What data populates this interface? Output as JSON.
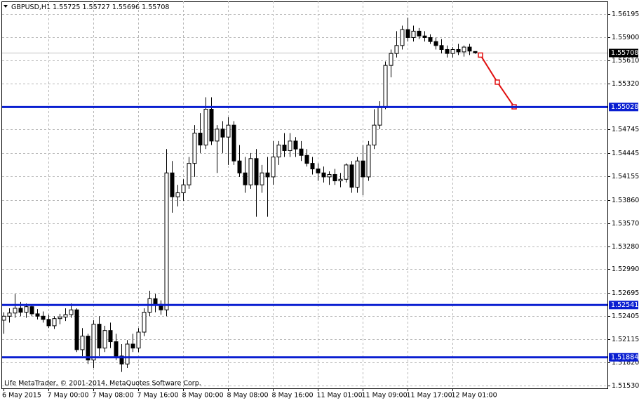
{
  "chart_data": {
    "type": "candlestick",
    "title": "GBPUSD,H1",
    "watermark": "Life MetaTrader, © 2001-2014, MetaQuotes Software Corp.",
    "categories": [
      "6 May 2015",
      null,
      null,
      null,
      null,
      null,
      null,
      null,
      "7 May 00:00",
      null,
      null,
      null,
      null,
      null,
      null,
      null,
      "7 May 08:00",
      null,
      null,
      null,
      null,
      null,
      null,
      null,
      "7 May 16:00",
      null,
      null,
      null,
      null,
      null,
      null,
      null,
      "8 May 00:00",
      null,
      null,
      null,
      null,
      null,
      null,
      null,
      "8 May 08:00",
      null,
      null,
      null,
      null,
      null,
      null,
      null,
      "8 May 16:00",
      null,
      null,
      null,
      null,
      null,
      null,
      null,
      "11 May 01:00",
      null,
      null,
      null,
      null,
      null,
      null,
      null,
      "11 May 09:00",
      null,
      null,
      null,
      null,
      null,
      null,
      null,
      "11 May 17:00",
      null,
      null,
      null,
      null,
      null,
      null,
      null,
      "12 May 01:00",
      null,
      null,
      null,
      null
    ],
    "open": [
      1.5235,
      1.524,
      1.5244,
      1.525,
      1.5245,
      1.5252,
      1.5243,
      1.524,
      1.5236,
      1.5228,
      1.5237,
      1.5239,
      1.5242,
      1.5248,
      1.5198,
      1.5215,
      1.5185,
      1.523,
      1.52,
      1.5222,
      1.5208,
      1.519,
      1.518,
      1.5205,
      1.52,
      1.522,
      1.5245,
      1.5262,
      1.5255,
      1.5248,
      1.542,
      1.539,
      1.5395,
      1.5405,
      1.5432,
      1.547,
      1.5455,
      1.55,
      1.546,
      1.5475,
      1.5465,
      1.548,
      1.5435,
      1.542,
      1.5405,
      1.5438,
      1.5405,
      1.542,
      1.5415,
      1.544,
      1.5455,
      1.5448,
      1.546,
      1.545,
      1.5442,
      1.5432,
      1.5425,
      1.542,
      1.5415,
      1.5418,
      1.541,
      1.5412,
      1.543,
      1.5402,
      1.5435,
      1.5415,
      1.5455,
      1.548,
      1.5502,
      1.5555,
      1.557,
      1.558,
      1.56,
      1.559,
      1.5598,
      1.5592,
      1.559,
      1.5585,
      1.558,
      1.5575,
      1.557,
      1.5575,
      1.5572,
      1.5578,
      1.55725
    ],
    "high": [
      1.5245,
      1.525,
      1.5268,
      1.5258,
      1.5256,
      1.5254,
      1.5249,
      1.5246,
      1.5242,
      1.524,
      1.5243,
      1.525,
      1.5256,
      1.525,
      1.5225,
      1.5218,
      1.5235,
      1.524,
      1.5228,
      1.5232,
      1.5218,
      1.5205,
      1.521,
      1.5218,
      1.5225,
      1.525,
      1.5272,
      1.5268,
      1.526,
      1.545,
      1.5435,
      1.5405,
      1.5412,
      1.544,
      1.548,
      1.5495,
      1.5515,
      1.5515,
      1.548,
      1.5485,
      1.549,
      1.5485,
      1.5455,
      1.544,
      1.5445,
      1.545,
      1.543,
      1.544,
      1.546,
      1.546,
      1.547,
      1.547,
      1.5465,
      1.546,
      1.545,
      1.544,
      1.5432,
      1.5428,
      1.5422,
      1.5425,
      1.542,
      1.5432,
      1.5435,
      1.544,
      1.5455,
      1.546,
      1.55,
      1.551,
      1.556,
      1.5575,
      1.5598,
      1.5605,
      1.5615,
      1.5605,
      1.5602,
      1.5598,
      1.5594,
      1.559,
      1.5588,
      1.558,
      1.5578,
      1.5582,
      1.558,
      1.5582,
      1.55727
    ],
    "low": [
      1.5218,
      1.5232,
      1.5238,
      1.524,
      1.5238,
      1.524,
      1.5236,
      1.5232,
      1.5225,
      1.5224,
      1.523,
      1.5234,
      1.5238,
      1.5195,
      1.519,
      1.518,
      1.5175,
      1.519,
      1.5195,
      1.52,
      1.5185,
      1.517,
      1.5175,
      1.5195,
      1.5195,
      1.5215,
      1.524,
      1.5245,
      1.5242,
      1.524,
      1.537,
      1.5378,
      1.5385,
      1.54,
      1.5415,
      1.5445,
      1.545,
      1.5455,
      1.542,
      1.5445,
      1.543,
      1.543,
      1.5415,
      1.5395,
      1.54,
      1.5365,
      1.5395,
      1.5365,
      1.5405,
      1.543,
      1.544,
      1.544,
      1.544,
      1.5435,
      1.5428,
      1.5418,
      1.541,
      1.5408,
      1.5405,
      1.5405,
      1.5402,
      1.5408,
      1.5395,
      1.5395,
      1.5392,
      1.541,
      1.545,
      1.5475,
      1.55,
      1.554,
      1.5565,
      1.5575,
      1.5585,
      1.5585,
      1.5588,
      1.5585,
      1.5582,
      1.5575,
      1.557,
      1.5565,
      1.5565,
      1.5568,
      1.5566,
      1.5568,
      1.55696
    ],
    "close": [
      1.524,
      1.5244,
      1.525,
      1.5245,
      1.5252,
      1.5243,
      1.524,
      1.5236,
      1.5228,
      1.5237,
      1.5239,
      1.5242,
      1.5248,
      1.5198,
      1.5215,
      1.5185,
      1.523,
      1.52,
      1.5222,
      1.5208,
      1.519,
      1.518,
      1.5205,
      1.52,
      1.522,
      1.5245,
      1.5262,
      1.5255,
      1.5248,
      1.542,
      1.539,
      1.5395,
      1.5405,
      1.5432,
      1.547,
      1.5455,
      1.55,
      1.546,
      1.5475,
      1.5465,
      1.548,
      1.5435,
      1.542,
      1.5405,
      1.5438,
      1.5405,
      1.542,
      1.5415,
      1.544,
      1.5455,
      1.5448,
      1.546,
      1.545,
      1.5442,
      1.5432,
      1.5425,
      1.542,
      1.5415,
      1.5418,
      1.541,
      1.5412,
      1.543,
      1.5402,
      1.5435,
      1.5415,
      1.5455,
      1.548,
      1.5502,
      1.5555,
      1.557,
      1.558,
      1.56,
      1.559,
      1.5598,
      1.5592,
      1.559,
      1.5585,
      1.558,
      1.5575,
      1.557,
      1.5575,
      1.5572,
      1.5578,
      1.5573,
      1.55708
    ],
    "ylim": [
      1.51494,
      1.56354
    ],
    "yticks": [
      1.56195,
      {
        "value": 1.559,
        "label": "1.55900"
      },
      {
        "value": 1.5561,
        "label": "1.55610"
      },
      {
        "value": 1.5532,
        "label": "1.55320"
      },
      1.54745,
      1.54445,
      1.54155,
      {
        "value": 1.5386,
        "label": "1.53860"
      },
      {
        "value": 1.5357,
        "label": "1.53570"
      },
      {
        "value": 1.5328,
        "label": "1.53280"
      },
      {
        "value": 1.5299,
        "label": "1.52990"
      },
      1.52695,
      1.52405,
      1.52115,
      {
        "value": 1.5182,
        "label": "1.51820"
      },
      {
        "value": 1.5153,
        "label": "1.51530"
      }
    ],
    "grid": true,
    "levels": {
      "color": "#0a1fd1",
      "values": [
        1.55028,
        1.52541,
        1.51884
      ]
    },
    "forecast": {
      "color": "#e01010",
      "x": [
        85,
        88,
        91
      ],
      "values": [
        1.5568,
        1.5534,
        1.5503
      ]
    }
  }
}
